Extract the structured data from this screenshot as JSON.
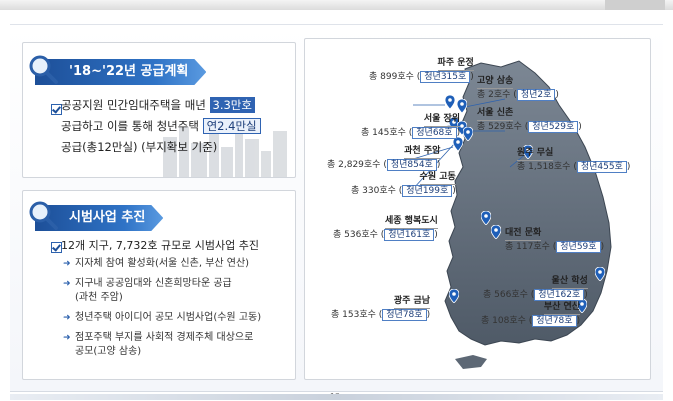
{
  "section1": {
    "title": "'18~'22년 공급계획",
    "line1_pre": "공공지원 민간임대주택을 매년",
    "line1_hl": "3.3만호",
    "line2_pre": "공급하고 이를 통해 청년주택",
    "line2_hl": "연2.4만실",
    "line3": "공급(총12만실) (부지확보 기준)"
  },
  "section2": {
    "title": "시범사업 추진",
    "main": "12개 지구, 7,732호 규모로 시범사업 추진",
    "items": [
      "지자체 참여 활성화(서울 신촌, 부산 연산)",
      "지구내 공공임대와 신혼희망타운 공급",
      "(과천 주암)",
      "청년주택 아이디어 공모 시범사업(수원 고동)",
      "점포주택 부지를 사회적 경제주체 대상으로",
      "공모(고양 삼송)"
    ]
  },
  "map": {
    "sites": [
      {
        "city": "파주 운정",
        "total": "총 899호수",
        "youth": "청년315호"
      },
      {
        "city": "고양 삼송",
        "total": "총 2호수",
        "youth": "청년2호"
      },
      {
        "city": "서울 장위",
        "total": "총 145호수",
        "youth": "청년68호"
      },
      {
        "city": "서울 신촌",
        "total": "총 529호수",
        "youth": "청년529호"
      },
      {
        "city": "과천 주암",
        "total": "총 2,829호수",
        "youth": "청년854호"
      },
      {
        "city": "원주 무실",
        "total": "총 1,518호수",
        "youth": "청년455호"
      },
      {
        "city": "수원 고동",
        "total": "총 330호수",
        "youth": "청년199호"
      },
      {
        "city": "세종 행복도시",
        "total": "총 536호수",
        "youth": "청년161호"
      },
      {
        "city": "대전 문화",
        "total": "총 117호수",
        "youth": "청년59호"
      },
      {
        "city": "울산 학성",
        "total": "총 566호수",
        "youth": "청년162호"
      },
      {
        "city": "광주 금남",
        "total": "총 153호수",
        "youth": "청년78호"
      },
      {
        "city": "부산 연산",
        "total": "총 108호수",
        "youth": "청년78호"
      }
    ]
  },
  "page_number": "12"
}
